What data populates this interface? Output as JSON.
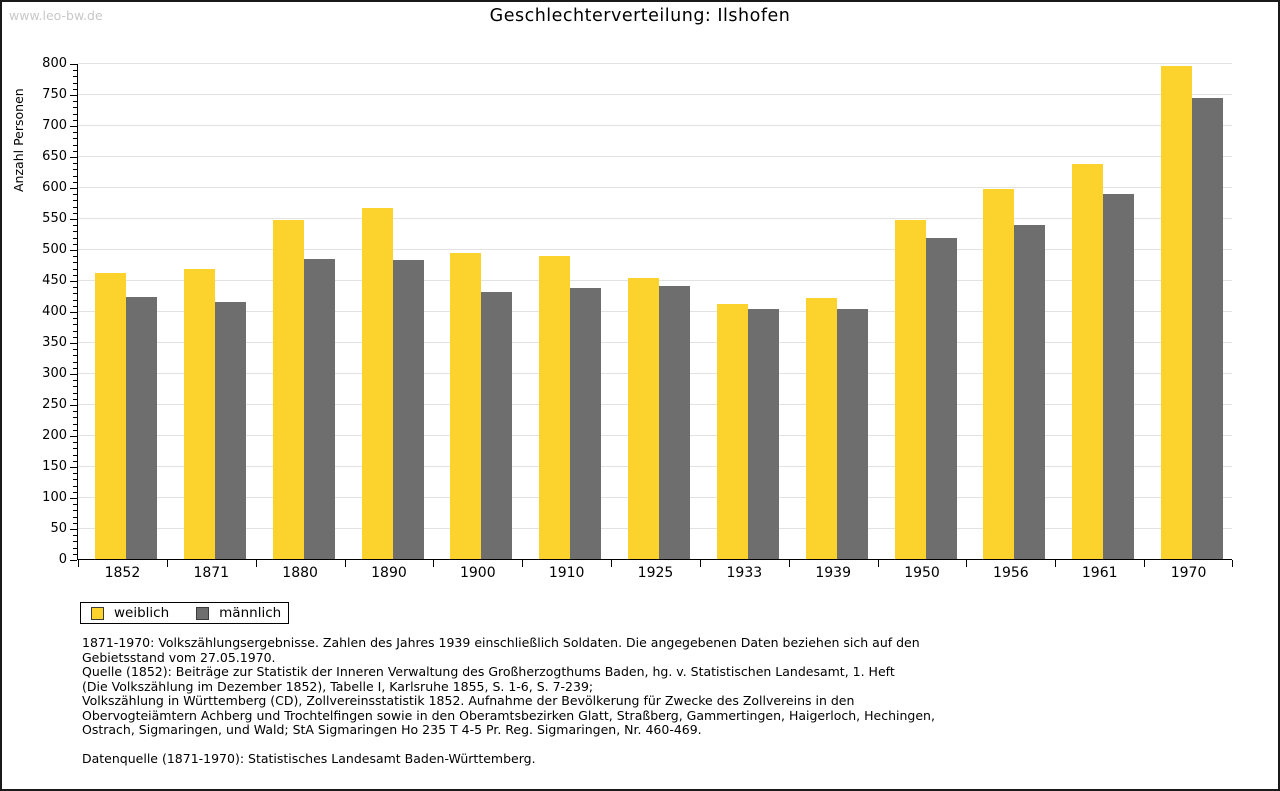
{
  "watermark": "www.leo-bw.de",
  "title": "Geschlechterverteilung: Ilshofen",
  "colors": {
    "female_bar": "#fcd32d",
    "male_bar": "#6e6e6e",
    "gridline": "#e2e2e2",
    "axis": "#000000",
    "watermark": "#c8c8c8"
  },
  "chart_data": {
    "type": "bar",
    "title": "Geschlechterverteilung: Ilshofen",
    "xlabel": "",
    "ylabel": "Anzahl Personen",
    "ylim": [
      0,
      800
    ],
    "ytick_step": 50,
    "y_minor_tick_step": 10,
    "grid": true,
    "legend_position": "bottom-left",
    "categories": [
      "1852",
      "1871",
      "1880",
      "1890",
      "1900",
      "1910",
      "1925",
      "1933",
      "1939",
      "1950",
      "1956",
      "1961",
      "1970"
    ],
    "series": [
      {
        "name": "weiblich",
        "color": "#fcd32d",
        "values": [
          462,
          467,
          546,
          566,
          494,
          489,
          454,
          412,
          421,
          547,
          596,
          637,
          795
        ]
      },
      {
        "name": "männlich",
        "color": "#6e6e6e",
        "values": [
          423,
          415,
          484,
          482,
          431,
          437,
          440,
          404,
          404,
          518,
          539,
          588,
          743
        ]
      }
    ]
  },
  "legend": {
    "items": [
      {
        "label": "weiblich",
        "color": "#fcd32d"
      },
      {
        "label": "männlich",
        "color": "#6e6e6e"
      }
    ]
  },
  "footnotes": {
    "lines": [
      "1871-1970: Volkszählungsergebnisse. Zahlen des Jahres 1939 einschließlich Soldaten. Die angegebenen Daten beziehen sich auf den",
      "Gebietsstand vom 27.05.1970.",
      "Quelle (1852): Beiträge zur Statistik der Inneren Verwaltung des Großherzogthums Baden, hg. v. Statistischen Landesamt, 1. Heft",
      "(Die Volkszählung im Dezember 1852), Tabelle I, Karlsruhe 1855, S. 1-6, S. 7-239;",
      "Volkszählung in Württemberg (CD), Zollvereinsstatistik 1852. Aufnahme der Bevölkerung für Zwecke des Zollvereins in den",
      "Obervogteiämtern Achberg und Trochtelfingen sowie in den Oberamtsbezirken Glatt, Straßberg, Gammertingen, Haigerloch, Hechingen,",
      "Ostrach, Sigmaringen, und Wald; StA Sigmaringen Ho 235 T 4-5 Pr. Reg. Sigmaringen, Nr. 460-469.",
      "",
      "Datenquelle (1871-1970): Statistisches Landesamt Baden-Württemberg."
    ]
  }
}
